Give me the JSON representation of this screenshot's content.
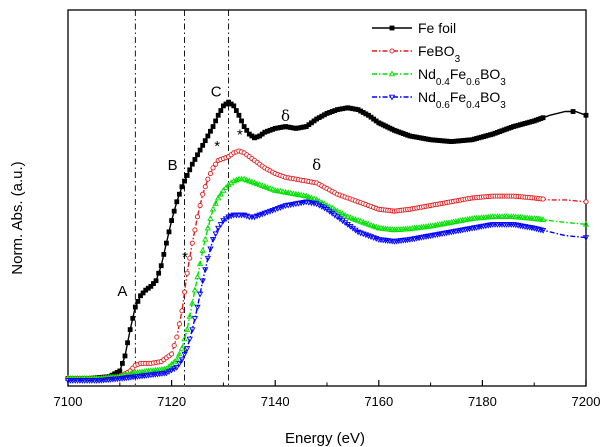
{
  "chart_data": {
    "type": "line",
    "title": "",
    "xlabel": "Energy (eV)",
    "ylabel": "Norm. Abs. (a.u.)",
    "xlim": [
      7100,
      7200
    ],
    "ylim": [
      0,
      1.0
    ],
    "x_ticks": [
      "7100",
      "7120",
      "7140",
      "7160",
      "7180",
      "7200"
    ],
    "y_ticks_visible": false,
    "legend_position": "top-right",
    "vertical_lines": [
      7113,
      7122.5,
      7131
    ],
    "series": [
      {
        "name": "Fe foil",
        "name_parts": [
          {
            "t": "Fe foil",
            "sub": false
          }
        ],
        "color": "#000000",
        "marker": "square",
        "points": [
          [
            7100,
            0.02
          ],
          [
            7104,
            0.02
          ],
          [
            7108,
            0.025
          ],
          [
            7110,
            0.04
          ],
          [
            7111,
            0.08
          ],
          [
            7112,
            0.15
          ],
          [
            7113,
            0.21
          ],
          [
            7114,
            0.24
          ],
          [
            7115,
            0.255
          ],
          [
            7116,
            0.265
          ],
          [
            7117,
            0.28
          ],
          [
            7118,
            0.32
          ],
          [
            7119,
            0.38
          ],
          [
            7120,
            0.44
          ],
          [
            7121,
            0.49
          ],
          [
            7122,
            0.53
          ],
          [
            7123,
            0.56
          ],
          [
            7124,
            0.59
          ],
          [
            7125,
            0.615
          ],
          [
            7126,
            0.64
          ],
          [
            7127,
            0.665
          ],
          [
            7128,
            0.69
          ],
          [
            7129,
            0.72
          ],
          [
            7130,
            0.745
          ],
          [
            7131,
            0.755
          ],
          [
            7132,
            0.745
          ],
          [
            7133,
            0.72
          ],
          [
            7134,
            0.69
          ],
          [
            7135,
            0.67
          ],
          [
            7136,
            0.66
          ],
          [
            7137,
            0.665
          ],
          [
            7138,
            0.675
          ],
          [
            7140,
            0.685
          ],
          [
            7142,
            0.69
          ],
          [
            7144,
            0.685
          ],
          [
            7146,
            0.69
          ],
          [
            7148,
            0.71
          ],
          [
            7150,
            0.725
          ],
          [
            7152,
            0.735
          ],
          [
            7154,
            0.74
          ],
          [
            7156,
            0.735
          ],
          [
            7158,
            0.72
          ],
          [
            7160,
            0.7
          ],
          [
            7163,
            0.68
          ],
          [
            7166,
            0.665
          ],
          [
            7170,
            0.655
          ],
          [
            7174,
            0.65
          ],
          [
            7178,
            0.655
          ],
          [
            7182,
            0.67
          ],
          [
            7186,
            0.69
          ],
          [
            7190,
            0.705
          ],
          [
            7193,
            0.72
          ],
          [
            7196,
            0.73
          ],
          [
            7198,
            0.73
          ],
          [
            7200,
            0.72
          ]
        ]
      },
      {
        "name": "FeBO3",
        "name_parts": [
          {
            "t": "FeBO",
            "sub": false
          },
          {
            "t": "3",
            "sub": true
          }
        ],
        "color": "#e31a1c",
        "marker": "circle",
        "points": [
          [
            7100,
            0.02
          ],
          [
            7106,
            0.02
          ],
          [
            7110,
            0.025
          ],
          [
            7112,
            0.04
          ],
          [
            7113,
            0.055
          ],
          [
            7114,
            0.06
          ],
          [
            7116,
            0.06
          ],
          [
            7118,
            0.065
          ],
          [
            7120,
            0.085
          ],
          [
            7121,
            0.13
          ],
          [
            7122,
            0.2
          ],
          [
            7123,
            0.3
          ],
          [
            7124,
            0.38
          ],
          [
            7125,
            0.45
          ],
          [
            7126,
            0.51
          ],
          [
            7127,
            0.55
          ],
          [
            7128,
            0.58
          ],
          [
            7129,
            0.6
          ],
          [
            7130,
            0.605
          ],
          [
            7131,
            0.61
          ],
          [
            7132,
            0.62
          ],
          [
            7133,
            0.625
          ],
          [
            7134,
            0.62
          ],
          [
            7136,
            0.6
          ],
          [
            7138,
            0.58
          ],
          [
            7140,
            0.565
          ],
          [
            7142,
            0.555
          ],
          [
            7144,
            0.55
          ],
          [
            7146,
            0.545
          ],
          [
            7148,
            0.54
          ],
          [
            7150,
            0.525
          ],
          [
            7152,
            0.51
          ],
          [
            7154,
            0.5
          ],
          [
            7156,
            0.49
          ],
          [
            7158,
            0.48
          ],
          [
            7160,
            0.47
          ],
          [
            7163,
            0.465
          ],
          [
            7166,
            0.47
          ],
          [
            7170,
            0.48
          ],
          [
            7174,
            0.49
          ],
          [
            7178,
            0.5
          ],
          [
            7182,
            0.505
          ],
          [
            7186,
            0.505
          ],
          [
            7190,
            0.5
          ],
          [
            7193,
            0.495
          ],
          [
            7196,
            0.495
          ],
          [
            7200,
            0.49
          ]
        ]
      },
      {
        "name": "Nd0.4Fe0.6BO3",
        "name_parts": [
          {
            "t": "Nd",
            "sub": false
          },
          {
            "t": "0.4",
            "sub": true
          },
          {
            "t": "Fe",
            "sub": false
          },
          {
            "t": "0.6",
            "sub": true
          },
          {
            "t": "BO",
            "sub": false
          },
          {
            "t": "3",
            "sub": true
          }
        ],
        "color": "#00e000",
        "marker": "triangle-up",
        "points": [
          [
            7100,
            0.02
          ],
          [
            7106,
            0.02
          ],
          [
            7110,
            0.025
          ],
          [
            7113,
            0.035
          ],
          [
            7116,
            0.04
          ],
          [
            7119,
            0.045
          ],
          [
            7121,
            0.07
          ],
          [
            7122,
            0.1
          ],
          [
            7123,
            0.15
          ],
          [
            7124,
            0.22
          ],
          [
            7125,
            0.29
          ],
          [
            7126,
            0.36
          ],
          [
            7127,
            0.42
          ],
          [
            7128,
            0.47
          ],
          [
            7129,
            0.5
          ],
          [
            7130,
            0.52
          ],
          [
            7131,
            0.535
          ],
          [
            7132,
            0.545
          ],
          [
            7133,
            0.55
          ],
          [
            7134,
            0.55
          ],
          [
            7136,
            0.54
          ],
          [
            7138,
            0.53
          ],
          [
            7140,
            0.52
          ],
          [
            7142,
            0.515
          ],
          [
            7144,
            0.51
          ],
          [
            7146,
            0.505
          ],
          [
            7148,
            0.495
          ],
          [
            7150,
            0.48
          ],
          [
            7152,
            0.465
          ],
          [
            7154,
            0.45
          ],
          [
            7156,
            0.44
          ],
          [
            7158,
            0.43
          ],
          [
            7160,
            0.42
          ],
          [
            7163,
            0.415
          ],
          [
            7166,
            0.418
          ],
          [
            7170,
            0.425
          ],
          [
            7174,
            0.435
          ],
          [
            7178,
            0.445
          ],
          [
            7182,
            0.45
          ],
          [
            7186,
            0.45
          ],
          [
            7190,
            0.445
          ],
          [
            7193,
            0.44
          ],
          [
            7196,
            0.435
          ],
          [
            7200,
            0.43
          ]
        ]
      },
      {
        "name": "Nd0.6Fe0.4BO3",
        "name_parts": [
          {
            "t": "Nd",
            "sub": false
          },
          {
            "t": "0.6",
            "sub": true
          },
          {
            "t": "Fe",
            "sub": false
          },
          {
            "t": "0.4",
            "sub": true
          },
          {
            "t": "BO",
            "sub": false
          },
          {
            "t": "3",
            "sub": true
          }
        ],
        "color": "#0000ff",
        "marker": "triangle-down",
        "points": [
          [
            7100,
            0.015
          ],
          [
            7106,
            0.015
          ],
          [
            7110,
            0.02
          ],
          [
            7113,
            0.025
          ],
          [
            7116,
            0.03
          ],
          [
            7119,
            0.035
          ],
          [
            7121,
            0.05
          ],
          [
            7122,
            0.07
          ],
          [
            7123,
            0.1
          ],
          [
            7124,
            0.15
          ],
          [
            7125,
            0.21
          ],
          [
            7126,
            0.28
          ],
          [
            7127,
            0.34
          ],
          [
            7128,
            0.39
          ],
          [
            7129,
            0.42
          ],
          [
            7130,
            0.44
          ],
          [
            7131,
            0.45
          ],
          [
            7132,
            0.455
          ],
          [
            7134,
            0.455
          ],
          [
            7135,
            0.45
          ],
          [
            7136,
            0.45
          ],
          [
            7137,
            0.455
          ],
          [
            7138,
            0.46
          ],
          [
            7140,
            0.47
          ],
          [
            7142,
            0.48
          ],
          [
            7144,
            0.485
          ],
          [
            7146,
            0.49
          ],
          [
            7148,
            0.485
          ],
          [
            7150,
            0.47
          ],
          [
            7152,
            0.45
          ],
          [
            7154,
            0.43
          ],
          [
            7156,
            0.41
          ],
          [
            7158,
            0.4
          ],
          [
            7160,
            0.39
          ],
          [
            7163,
            0.385
          ],
          [
            7166,
            0.39
          ],
          [
            7170,
            0.4
          ],
          [
            7174,
            0.41
          ],
          [
            7178,
            0.42
          ],
          [
            7182,
            0.43
          ],
          [
            7186,
            0.43
          ],
          [
            7190,
            0.42
          ],
          [
            7193,
            0.41
          ],
          [
            7196,
            0.4
          ],
          [
            7200,
            0.395
          ]
        ]
      }
    ],
    "annotations": [
      {
        "text": "A",
        "x": 7110.5,
        "y": 0.24,
        "kind": "label"
      },
      {
        "text": "B",
        "x": 7120.2,
        "y": 0.575,
        "kind": "label"
      },
      {
        "text": "C",
        "x": 7128.6,
        "y": 0.77,
        "kind": "label"
      },
      {
        "text": "δ",
        "x": 7142,
        "y": 0.705,
        "kind": "delta"
      },
      {
        "text": "δ",
        "x": 7148,
        "y": 0.575,
        "kind": "delta"
      },
      {
        "text": "*",
        "x": 7122.6,
        "y": 0.33,
        "kind": "star"
      },
      {
        "text": "*",
        "x": 7128.8,
        "y": 0.625,
        "kind": "star"
      },
      {
        "text": "*",
        "x": 7133.2,
        "y": 0.655,
        "kind": "star"
      }
    ]
  }
}
